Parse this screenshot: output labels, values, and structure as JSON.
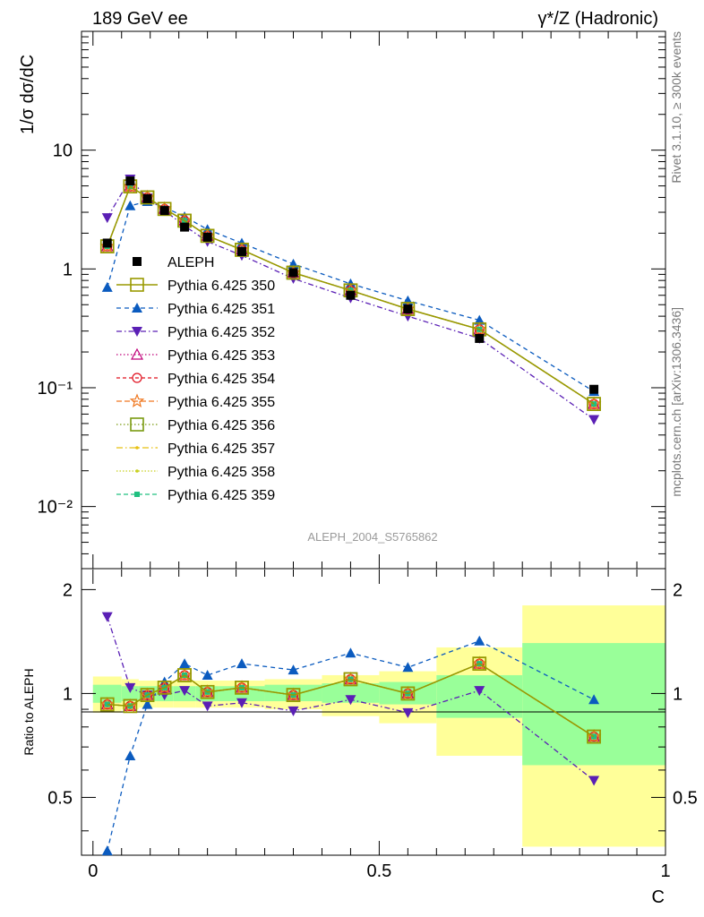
{
  "header": {
    "left": "189 GeV ee",
    "right": "γ*/Z (Hadronic)"
  },
  "side_labels": {
    "rivet": "Rivet 3.1.10, ≥ 300k events",
    "mcplots": "mcplots.cern.ch [arXiv:1306.3436]"
  },
  "watermark": "ALEPH_2004_S5765862",
  "colors": {
    "data": "#000000",
    "p350": "#999900",
    "p351": "#0b5bbf",
    "p352": "#5a1fb5",
    "p353": "#c0007a",
    "p354": "#e0101e",
    "p355": "#f07820",
    "p356": "#7a9a10",
    "p357": "#e8c010",
    "p358": "#c8d020",
    "p359": "#20c080",
    "band_inner": "#99ff99",
    "band_outer": "#ffff99"
  },
  "chart_data": [
    {
      "type": "line",
      "panel": "main",
      "ylabel": "1/σ  dσ/dC",
      "xlim": [
        -0.02,
        1.0
      ],
      "ylim": [
        0.003,
        100
      ],
      "yscale": "log",
      "ytick_labels": [
        "10⁻²",
        "10⁻¹",
        "1",
        "10"
      ],
      "grid": false,
      "legend_position": "left-middle",
      "x": [
        0.025,
        0.065,
        0.095,
        0.125,
        0.16,
        0.2,
        0.26,
        0.35,
        0.45,
        0.55,
        0.675,
        0.875
      ],
      "data": {
        "name": "ALEPH",
        "values": [
          1.65,
          5.5,
          3.9,
          3.1,
          2.25,
          1.85,
          1.4,
          0.93,
          0.6,
          0.46,
          0.26,
          0.097
        ]
      },
      "series": [
        {
          "name": "Pythia 6.425 350",
          "values": [
            1.55,
            4.95,
            4.0,
            3.2,
            2.55,
            1.9,
            1.45,
            0.93,
            0.66,
            0.46,
            0.31,
            0.073
          ]
        },
        {
          "name": "Pythia 6.425 351",
          "values": [
            0.7,
            3.4,
            3.7,
            3.3,
            2.75,
            2.15,
            1.65,
            1.1,
            0.75,
            0.54,
            0.37,
            0.093
          ]
        },
        {
          "name": "Pythia 6.425 352",
          "values": [
            2.7,
            5.7,
            3.95,
            3.1,
            2.3,
            1.7,
            1.3,
            0.83,
            0.57,
            0.4,
            0.26,
            0.054
          ]
        },
        {
          "name": "Pythia 6.425 353",
          "values": [
            1.55,
            4.95,
            4.0,
            3.2,
            2.55,
            1.9,
            1.45,
            0.93,
            0.66,
            0.46,
            0.31,
            0.073
          ]
        },
        {
          "name": "Pythia 6.425 354",
          "values": [
            1.55,
            4.95,
            4.0,
            3.2,
            2.55,
            1.9,
            1.45,
            0.93,
            0.66,
            0.46,
            0.31,
            0.073
          ]
        },
        {
          "name": "Pythia 6.425 355",
          "values": [
            1.55,
            4.95,
            4.0,
            3.2,
            2.55,
            1.9,
            1.45,
            0.93,
            0.66,
            0.46,
            0.31,
            0.073
          ]
        },
        {
          "name": "Pythia 6.425 356",
          "values": [
            1.55,
            4.95,
            4.0,
            3.2,
            2.55,
            1.9,
            1.45,
            0.93,
            0.66,
            0.46,
            0.31,
            0.073
          ]
        },
        {
          "name": "Pythia 6.425 357",
          "values": [
            1.55,
            4.95,
            4.0,
            3.2,
            2.55,
            1.9,
            1.45,
            0.93,
            0.66,
            0.46,
            0.31,
            0.073
          ]
        },
        {
          "name": "Pythia 6.425 358",
          "values": [
            1.55,
            4.95,
            4.0,
            3.2,
            2.55,
            1.9,
            1.45,
            0.93,
            0.66,
            0.46,
            0.31,
            0.073
          ]
        },
        {
          "name": "Pythia 6.425 359",
          "values": [
            1.55,
            4.95,
            4.0,
            3.2,
            2.55,
            1.9,
            1.45,
            0.93,
            0.66,
            0.46,
            0.31,
            0.073
          ]
        }
      ]
    },
    {
      "type": "line",
      "panel": "ratio",
      "ylabel": "Ratio to ALEPH",
      "xlabel": "C",
      "xlim": [
        -0.02,
        1.0
      ],
      "ylim": [
        0.34,
        2.3
      ],
      "yscale": "log",
      "ytick_labels": [
        "0.5",
        "1",
        "2"
      ],
      "xtick_labels": [
        "0",
        "0.5",
        "1"
      ],
      "bins": [
        [
          0.0,
          0.05
        ],
        [
          0.05,
          0.08
        ],
        [
          0.08,
          0.11
        ],
        [
          0.11,
          0.14
        ],
        [
          0.14,
          0.18
        ],
        [
          0.18,
          0.22
        ],
        [
          0.22,
          0.3
        ],
        [
          0.3,
          0.4
        ],
        [
          0.4,
          0.5
        ],
        [
          0.5,
          0.6
        ],
        [
          0.6,
          0.75
        ],
        [
          0.75,
          1.0
        ]
      ],
      "band_inner": [
        [
          0.94,
          1.06
        ],
        [
          0.95,
          1.05
        ],
        [
          0.95,
          1.05
        ],
        [
          0.95,
          1.05
        ],
        [
          0.95,
          1.05
        ],
        [
          0.95,
          1.05
        ],
        [
          0.95,
          1.05
        ],
        [
          0.95,
          1.06
        ],
        [
          0.94,
          1.07
        ],
        [
          0.93,
          1.08
        ],
        [
          0.85,
          1.13
        ],
        [
          0.62,
          1.4
        ]
      ],
      "band_outer": [
        [
          0.88,
          1.12
        ],
        [
          0.9,
          1.1
        ],
        [
          0.91,
          1.09
        ],
        [
          0.91,
          1.09
        ],
        [
          0.91,
          1.09
        ],
        [
          0.91,
          1.09
        ],
        [
          0.91,
          1.09
        ],
        [
          0.9,
          1.1
        ],
        [
          0.86,
          1.13
        ],
        [
          0.82,
          1.16
        ],
        [
          0.66,
          1.36
        ],
        [
          0.36,
          1.8
        ]
      ],
      "x": [
        0.025,
        0.065,
        0.095,
        0.125,
        0.16,
        0.2,
        0.26,
        0.35,
        0.45,
        0.55,
        0.675,
        0.875
      ],
      "series": [
        {
          "name": "Pythia 6.425 350",
          "values": [
            0.93,
            0.92,
            0.99,
            1.04,
            1.13,
            1.01,
            1.04,
            0.99,
            1.1,
            1.0,
            1.22,
            0.75
          ]
        },
        {
          "name": "Pythia 6.425 351",
          "values": [
            0.35,
            0.66,
            0.93,
            1.08,
            1.22,
            1.13,
            1.22,
            1.17,
            1.31,
            1.19,
            1.42,
            0.96
          ]
        },
        {
          "name": "Pythia 6.425 352",
          "values": [
            1.67,
            1.04,
            0.99,
            0.99,
            1.02,
            0.92,
            0.94,
            0.89,
            0.96,
            0.88,
            1.02,
            0.56
          ]
        },
        {
          "name": "Pythia 6.425 353",
          "values": [
            0.93,
            0.92,
            0.99,
            1.04,
            1.13,
            1.01,
            1.04,
            0.99,
            1.1,
            1.0,
            1.22,
            0.75
          ]
        },
        {
          "name": "Pythia 6.425 354",
          "values": [
            0.93,
            0.92,
            0.99,
            1.04,
            1.13,
            1.01,
            1.04,
            0.99,
            1.1,
            1.0,
            1.22,
            0.75
          ]
        },
        {
          "name": "Pythia 6.425 355",
          "values": [
            0.93,
            0.92,
            0.99,
            1.04,
            1.13,
            1.01,
            1.04,
            0.99,
            1.1,
            1.0,
            1.22,
            0.75
          ]
        },
        {
          "name": "Pythia 6.425 356",
          "values": [
            0.93,
            0.92,
            0.99,
            1.04,
            1.13,
            1.01,
            1.04,
            0.99,
            1.1,
            1.0,
            1.22,
            0.75
          ]
        },
        {
          "name": "Pythia 6.425 357",
          "values": [
            0.93,
            0.92,
            0.99,
            1.04,
            1.13,
            1.01,
            1.04,
            0.99,
            1.1,
            1.0,
            1.22,
            0.75
          ]
        },
        {
          "name": "Pythia 6.425 358",
          "values": [
            0.93,
            0.92,
            0.99,
            1.04,
            1.13,
            1.01,
            1.04,
            0.99,
            1.1,
            1.0,
            1.22,
            0.75
          ]
        },
        {
          "name": "Pythia 6.425 359",
          "values": [
            0.93,
            0.92,
            0.99,
            1.04,
            1.13,
            1.01,
            1.04,
            0.99,
            1.1,
            1.0,
            1.22,
            0.75
          ]
        }
      ]
    }
  ]
}
